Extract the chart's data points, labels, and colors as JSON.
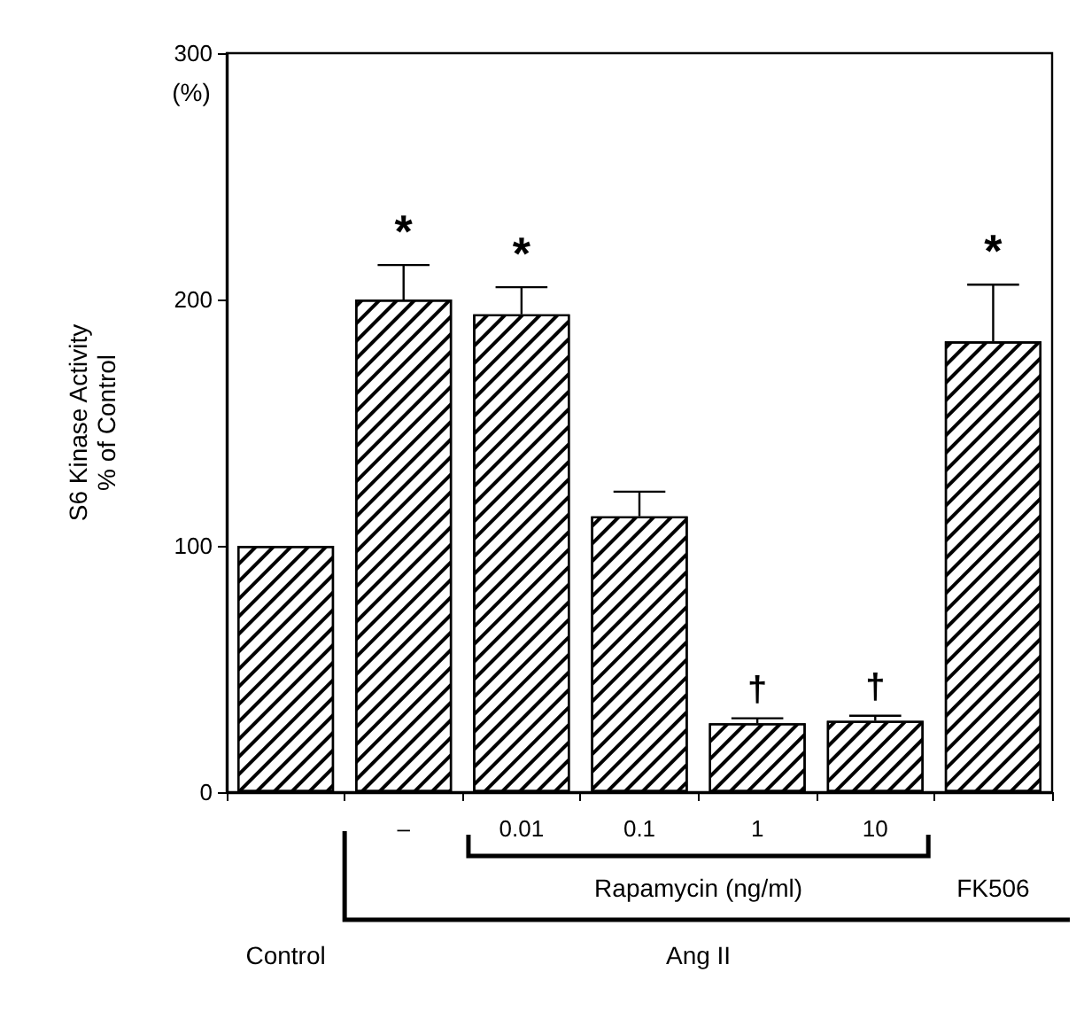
{
  "chart_data": {
    "type": "bar",
    "ylabel": "S6 Kinase Activity\n% of Control",
    "categories": [
      null,
      "–",
      "0.01",
      "0.1",
      "1",
      "10",
      null
    ],
    "values": [
      100,
      200,
      194,
      112,
      28,
      29,
      183
    ],
    "errors": [
      null,
      [
        200,
        214
      ],
      [
        194,
        205
      ],
      [
        112,
        122
      ],
      [
        28,
        30
      ],
      [
        29,
        31
      ],
      [
        183,
        206
      ]
    ],
    "value_labels": [
      null,
      "*",
      "*",
      null,
      "†",
      "†",
      "*"
    ],
    "color": "#ffffff",
    "ylim": [
      0,
      300
    ],
    "yticks": [
      0,
      100,
      200,
      300
    ],
    "annotations": [
      "(%)",
      "Rapamycin (ng/ml)",
      "FK506",
      "Control",
      "Ang II"
    ],
    "grid": false
  }
}
